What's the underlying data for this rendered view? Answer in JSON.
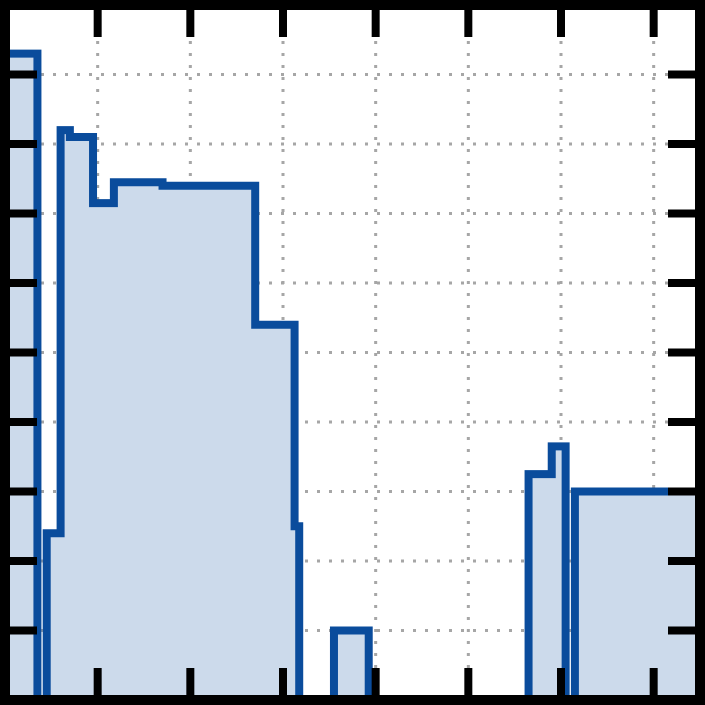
{
  "chart_data": {
    "type": "area",
    "title": "",
    "xlabel": "",
    "ylabel": "",
    "xlim": [
      0,
      15
    ],
    "ylim": [
      0,
      10
    ],
    "x_ticks": [
      0,
      2,
      4,
      6,
      8,
      10,
      12,
      14
    ],
    "y_ticks": [
      1,
      2,
      3,
      4,
      5,
      6,
      7,
      8,
      9
    ],
    "grid": true,
    "legend": "none",
    "step": "post",
    "series": [
      {
        "color": "#0a4c9c",
        "fill": "#ccdaeb",
        "points": [
          [
            0.0,
            9.3
          ],
          [
            0.7,
            9.3
          ],
          [
            0.7,
            0.0
          ],
          [
            0.9,
            0.0
          ],
          [
            0.9,
            2.4
          ],
          [
            1.2,
            2.4
          ],
          [
            1.2,
            8.2
          ],
          [
            1.4,
            8.2
          ],
          [
            1.4,
            8.1
          ],
          [
            1.9,
            8.1
          ],
          [
            1.9,
            7.15
          ],
          [
            2.35,
            7.15
          ],
          [
            2.35,
            7.45
          ],
          [
            3.4,
            7.45
          ],
          [
            3.4,
            7.4
          ],
          [
            5.4,
            7.4
          ],
          [
            5.4,
            5.4
          ],
          [
            6.25,
            5.4
          ],
          [
            6.25,
            2.5
          ],
          [
            6.35,
            2.5
          ],
          [
            6.35,
            0.0
          ],
          [
            7.1,
            0.0
          ],
          [
            7.1,
            1.0
          ],
          [
            7.85,
            1.0
          ],
          [
            7.85,
            0.0
          ],
          [
            11.3,
            0.0
          ],
          [
            11.3,
            3.25
          ],
          [
            11.8,
            3.25
          ],
          [
            11.8,
            3.65
          ],
          [
            12.1,
            3.65
          ],
          [
            12.1,
            0.0
          ],
          [
            12.3,
            0.0
          ],
          [
            12.3,
            3.0
          ],
          [
            15.0,
            3.0
          ]
        ]
      }
    ]
  }
}
